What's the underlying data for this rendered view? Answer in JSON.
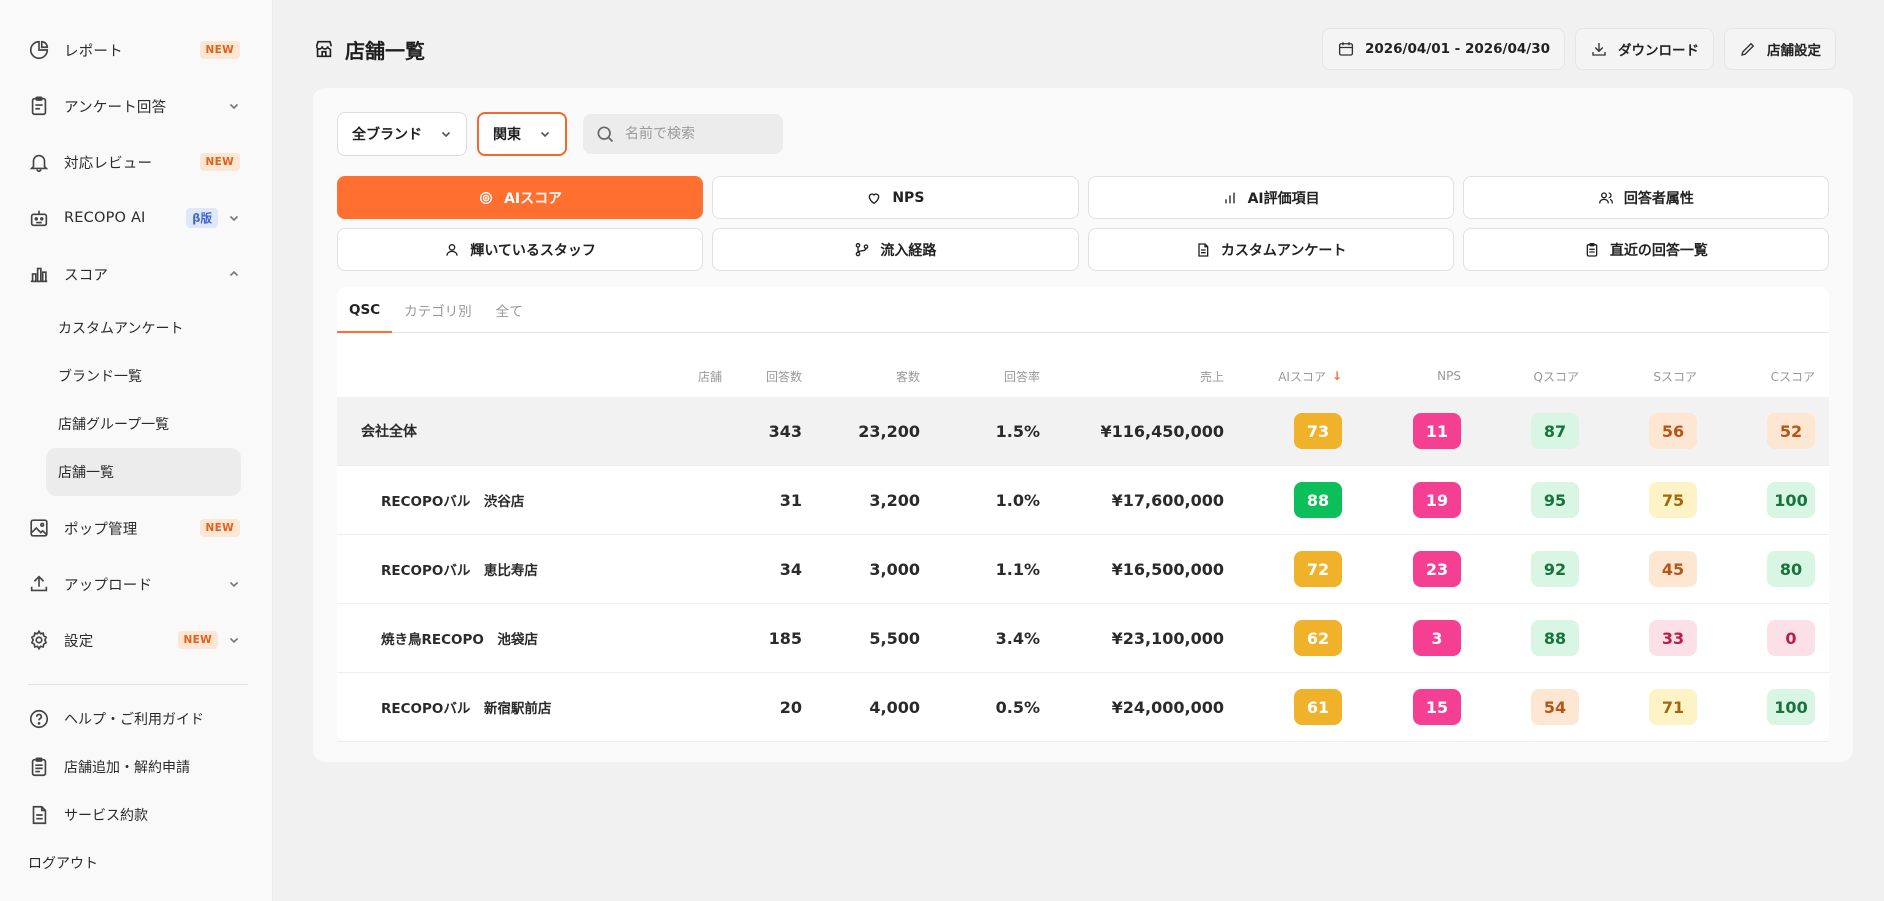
{
  "sidebar": {
    "items": [
      {
        "label": "レポート",
        "badge": "NEW"
      },
      {
        "label": "アンケート回答"
      },
      {
        "label": "対応レビュー",
        "badge": "NEW"
      },
      {
        "label": "RECOPO AI",
        "beta": "β版"
      },
      {
        "label": "スコア"
      },
      {
        "label": "ポップ管理",
        "badge": "NEW"
      },
      {
        "label": "アップロード"
      },
      {
        "label": "設定",
        "badge": "NEW"
      }
    ],
    "sub_items": [
      "カスタムアンケート",
      "ブランド一覧",
      "店舗グループ一覧",
      "店舗一覧"
    ],
    "footer": [
      "ヘルプ・ご利用ガイド",
      "店舗追加・解約申請",
      "サービス約款"
    ],
    "logout": "ログアウト"
  },
  "header": {
    "title": "店舗一覧",
    "date_range": "2026/04/01 - 2026/04/30",
    "download": "ダウンロード",
    "settings": "店舗設定"
  },
  "filters": {
    "brand": "全ブランド",
    "region": "関東",
    "search_placeholder": "名前で検索"
  },
  "categories": [
    "AIスコア",
    "NPS",
    "AI評価項目",
    "回答者属性",
    "輝いているスタッフ",
    "流入経路",
    "カスタムアンケート",
    "直近の回答一覧"
  ],
  "tabs": [
    "QSC",
    "カテゴリ別",
    "全て"
  ],
  "table": {
    "headers": {
      "store": "店舗",
      "responses": "回答数",
      "customers": "客数",
      "rate": "回答率",
      "sales": "売上",
      "ai": "AIスコア",
      "sort": "↓",
      "nps": "NPS",
      "q": "Qスコア",
      "s": "Sスコア",
      "c": "Cスコア"
    },
    "rows": [
      {
        "name": "会社全体",
        "responses": "343",
        "customers": "23,200",
        "rate": "1.5%",
        "sales": "¥116,450,000",
        "ai": "73",
        "nps": "11",
        "q": "87",
        "s": "56",
        "c": "52"
      },
      {
        "name": "RECOPOバル　渋谷店",
        "responses": "31",
        "customers": "3,200",
        "rate": "1.0%",
        "sales": "¥17,600,000",
        "ai": "88",
        "nps": "19",
        "q": "95",
        "s": "75",
        "c": "100"
      },
      {
        "name": "RECOPOバル　恵比寿店",
        "responses": "34",
        "customers": "3,000",
        "rate": "1.1%",
        "sales": "¥16,500,000",
        "ai": "72",
        "nps": "23",
        "q": "92",
        "s": "45",
        "c": "80"
      },
      {
        "name": "焼き鳥RECOPO　池袋店",
        "responses": "185",
        "customers": "5,500",
        "rate": "3.4%",
        "sales": "¥23,100,000",
        "ai": "62",
        "nps": "3",
        "q": "88",
        "s": "33",
        "c": "0"
      },
      {
        "name": "RECOPOバル　新宿駅前店",
        "responses": "20",
        "customers": "4,000",
        "rate": "0.5%",
        "sales": "¥24,000,000",
        "ai": "61",
        "nps": "15",
        "q": "54",
        "s": "71",
        "c": "100"
      }
    ]
  },
  "colors": {
    "accent": "#ff6f2f",
    "ai_gold": "#f0b22a",
    "ai_green": "#0cbf5a",
    "nps_pink": "#f43f93",
    "good_bg": "#d9f5e3",
    "good_fg": "#17733f",
    "mid_bg": "#fde6d2",
    "mid_fg": "#b75416",
    "warn_bg": "#fdf3c6",
    "warn_fg": "#a1690b",
    "bad_bg": "#fbe1e7",
    "bad_fg": "#b61d4a"
  }
}
